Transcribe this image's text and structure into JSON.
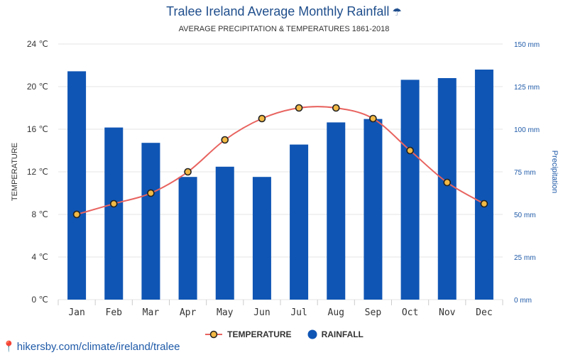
{
  "header": {
    "title": "Tralee Ireland Average Monthly Rainfall",
    "subtitle": "AVERAGE PRECIPITATION & TEMPERATURES 1861-2018"
  },
  "legend": {
    "temperature_label": "TEMPERATURE",
    "rainfall_label": "RAINFALL"
  },
  "footer": {
    "url": "hikersby.com/climate/ireland/tralee"
  },
  "colors": {
    "bar": "#0f55b4",
    "line": "#e8635f",
    "marker_fill": "#f2b944",
    "title": "#1f4e8c"
  },
  "chart_data": {
    "type": "bar+line",
    "categories": [
      "Jan",
      "Feb",
      "Mar",
      "Apr",
      "May",
      "Jun",
      "Jul",
      "Aug",
      "Sep",
      "Oct",
      "Nov",
      "Dec"
    ],
    "series": [
      {
        "name": "TEMPERATURE",
        "type": "line",
        "axis": "left",
        "unit": "℃",
        "values": [
          8,
          9,
          10,
          12,
          15,
          17,
          18,
          18,
          17,
          14,
          11,
          9
        ]
      },
      {
        "name": "RAINFALL",
        "type": "bar",
        "axis": "right",
        "unit": "mm",
        "values": [
          134,
          101,
          92,
          72,
          78,
          72,
          91,
          104,
          106,
          129,
          130,
          135
        ]
      }
    ],
    "ylabel_left": "TEMPERATURE",
    "ylabel_right": "Precipitation",
    "ylim_left": [
      0,
      24
    ],
    "ylim_right": [
      0,
      150
    ],
    "yticks_left": [
      "0 ℃",
      "4 ℃",
      "8 ℃",
      "12 ℃",
      "16 ℃",
      "20 ℃",
      "24 ℃"
    ],
    "yticks_right": [
      "0 mm",
      "25 mm",
      "50 mm",
      "75 mm",
      "100 mm",
      "125 mm",
      "150 mm"
    ],
    "grid": true,
    "legend_position": "bottom"
  }
}
